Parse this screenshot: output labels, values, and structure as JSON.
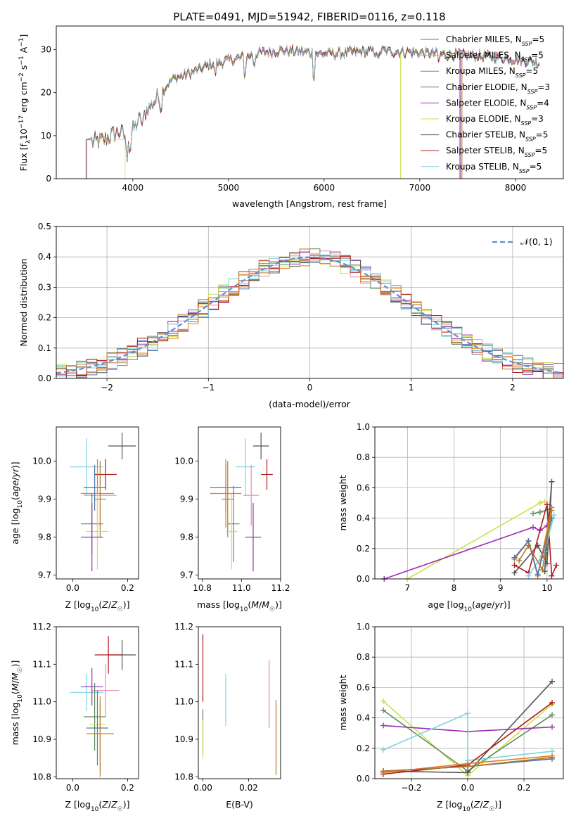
{
  "figure": {
    "title": "PLATE=0491, MJD=51942, FIBERID=0116, z=0.118"
  },
  "colors": {
    "Chabrier MILES": "#4a78b0",
    "Salpeter MILES": "#e48ab7",
    "Kroupa MILES": "#b07a2e",
    "Chabrier ELODIE": "#5f8a5f",
    "Salpeter ELODIE": "#9a2fb0",
    "Kroupa ELODIE": "#c9e24f",
    "Chabrier STELIB": "#555555",
    "Salpeter STELIB": "#b01818",
    "Kroupa STELIB": "#7fd3e0",
    "orange": "#e87a20",
    "gauss": "#5b8fd6"
  },
  "chart_data": [
    {
      "id": "spectrum",
      "type": "line",
      "xlabel": "wavelength [Angstrom, rest frame]",
      "ylabel": "Flux [f_λ10^{-17} erg cm^{-2} s^{-1} A^{-1}]",
      "xlim": [
        3200,
        8500
      ],
      "ylim": [
        0,
        35.5
      ],
      "xticks": [
        4000,
        5000,
        6000,
        7000,
        8000
      ],
      "yticks": [
        0,
        10,
        20,
        30
      ],
      "legend_position": "top-right",
      "legend": [
        {
          "name": "Chabrier MILES",
          "sub": "SSP",
          "n": "5"
        },
        {
          "name": "Salpeter MILES",
          "sub": "SSP",
          "n": "5"
        },
        {
          "name": "Kroupa MILES",
          "sub": "SSP",
          "n": "5"
        },
        {
          "name": "Chabrier ELODIE",
          "sub": "SSP",
          "n": "3"
        },
        {
          "name": "Salpeter ELODIE",
          "sub": "SSP",
          "n": "4"
        },
        {
          "name": "Kroupa ELODIE",
          "sub": "SSP",
          "n": "3"
        },
        {
          "name": "Chabrier STELIB",
          "sub": "SSP",
          "n": "5"
        },
        {
          "name": "Salpeter STELIB",
          "sub": "SSP",
          "n": "5"
        },
        {
          "name": "Kroupa STELIB",
          "sub": "SSP",
          "n": "5"
        }
      ],
      "continuum_x": [
        3570,
        3700,
        3850,
        3950,
        4050,
        4150,
        4300,
        4400,
        4600,
        4800,
        5000,
        5200,
        5400,
        5600,
        5800,
        6000,
        6200,
        6400,
        6600,
        6800,
        7000,
        7200,
        7400,
        7600,
        7800,
        8000,
        8250
      ],
      "continuum_y": [
        8.5,
        9.0,
        11,
        9.5,
        13,
        16,
        20,
        23,
        24.5,
        26.5,
        27.5,
        28.5,
        29.5,
        29.8,
        29.5,
        29.0,
        29.2,
        29.5,
        29.7,
        29.5,
        29.3,
        29.0,
        28.8,
        28.6,
        28.2,
        27.8,
        27.0
      ]
    },
    {
      "id": "residuals",
      "type": "histogram",
      "xlabel": "(data-model)/error",
      "ylabel": "Normed distribution",
      "xlim": [
        -2.5,
        2.5
      ],
      "ylim": [
        0,
        0.5
      ],
      "xticks": [
        -2,
        -1,
        0,
        1,
        2
      ],
      "xtick_labels": [
        "−2",
        "−1",
        "0",
        "1",
        "2"
      ],
      "yticks": [
        0,
        0.1,
        0.2,
        0.3,
        0.4,
        0.5
      ],
      "ytick_labels": [
        "0.0",
        "0.1",
        "0.2",
        "0.3",
        "0.4",
        "0.5"
      ],
      "grid": true,
      "legend_position": "top-right",
      "legend": [
        "𝒩(0, 1)"
      ]
    },
    {
      "id": "age_vs_Z",
      "type": "errorbar",
      "xlabel": "Z [log10(Z/Z☉)]",
      "ylabel": "age  [log10(age/yr)]",
      "xlim": [
        -0.06,
        0.24
      ],
      "ylim": [
        9.69,
        10.09
      ],
      "xticks": [
        0.0,
        0.2
      ],
      "xtick_labels": [
        "0.0",
        "0.2"
      ],
      "yticks": [
        9.7,
        9.8,
        9.9,
        10.0
      ],
      "ytick_labels": [
        "9.7",
        "9.8",
        "9.9",
        "10.0"
      ],
      "points": [
        {
          "c": "Kroupa STELIB",
          "x": 0.05,
          "xe": 0.06,
          "y": 9.985,
          "ye": 0.075
        },
        {
          "c": "Chabrier STELIB",
          "x": 0.18,
          "xe": 0.05,
          "y": 10.04,
          "ye": 0.035
        },
        {
          "c": "Salpeter STELIB",
          "x": 0.12,
          "xe": 0.04,
          "y": 9.965,
          "ye": 0.04
        },
        {
          "c": "Salpeter MILES",
          "x": 0.1,
          "xe": 0.06,
          "y": 9.91,
          "ye": 0.09
        },
        {
          "c": "Chabrier MILES",
          "x": 0.08,
          "xe": 0.04,
          "y": 9.93,
          "ye": 0.06
        },
        {
          "c": "orange",
          "x": 0.09,
          "xe": 0.06,
          "y": 9.915,
          "ye": 0.09
        },
        {
          "c": "Kroupa MILES",
          "x": 0.1,
          "xe": 0.02,
          "y": 9.9,
          "ye": 0.1
        },
        {
          "c": "Chabrier ELODIE",
          "x": 0.07,
          "xe": 0.04,
          "y": 9.835,
          "ye": 0.08
        },
        {
          "c": "Kroupa ELODIE",
          "x": 0.09,
          "xe": 0.04,
          "y": 9.815,
          "ye": 0.1
        },
        {
          "c": "Salpeter ELODIE",
          "x": 0.07,
          "xe": 0.04,
          "y": 9.8,
          "ye": 0.09
        }
      ]
    },
    {
      "id": "age_vs_mass",
      "type": "errorbar",
      "xlabel": "mass [log10(M/M☉)]",
      "ylabel": "",
      "xlim": [
        10.78,
        11.2
      ],
      "ylim": [
        9.69,
        10.09
      ],
      "xticks": [
        10.8,
        11.0,
        11.2
      ],
      "xtick_labels": [
        "10.8",
        "11.0",
        "11.2"
      ],
      "yticks": [
        9.7,
        9.8,
        9.9,
        10.0
      ],
      "ytick_labels": [
        "9.7",
        "9.8",
        "9.9",
        "10.0"
      ],
      "points": [
        {
          "c": "Kroupa STELIB",
          "x": 11.02,
          "xe": 0.05,
          "y": 9.985,
          "ye": 0.075
        },
        {
          "c": "Chabrier STELIB",
          "x": 11.1,
          "xe": 0.04,
          "y": 10.04,
          "ye": 0.035
        },
        {
          "c": "Salpeter STELIB",
          "x": 11.13,
          "xe": 0.03,
          "y": 9.965,
          "ye": 0.04
        },
        {
          "c": "Salpeter MILES",
          "x": 11.05,
          "xe": 0.04,
          "y": 9.91,
          "ye": 0.08
        },
        {
          "c": "Chabrier MILES",
          "x": 10.92,
          "xe": 0.08,
          "y": 9.93,
          "ye": 0.06
        },
        {
          "c": "orange",
          "x": 10.92,
          "xe": 0.08,
          "y": 9.915,
          "ye": 0.09
        },
        {
          "c": "Kroupa MILES",
          "x": 10.93,
          "xe": 0.03,
          "y": 9.9,
          "ye": 0.1
        },
        {
          "c": "Chabrier ELODIE",
          "x": 10.96,
          "xe": 0.03,
          "y": 9.835,
          "ye": 0.1
        },
        {
          "c": "Kroupa ELODIE",
          "x": 10.95,
          "xe": 0.03,
          "y": 9.815,
          "ye": 0.1
        },
        {
          "c": "Salpeter ELODIE",
          "x": 11.06,
          "xe": 0.04,
          "y": 9.8,
          "ye": 0.09
        }
      ]
    },
    {
      "id": "massweight_vs_age",
      "type": "line",
      "xlabel": "age  [log10(age/yr)]",
      "ylabel": "mass weight",
      "xlim": [
        6.3,
        10.35
      ],
      "ylim": [
        0,
        1.0
      ],
      "xticks": [
        7,
        8,
        9,
        10
      ],
      "xtick_labels": [
        "7",
        "8",
        "9",
        "10"
      ],
      "yticks": [
        0,
        0.2,
        0.4,
        0.6,
        0.8,
        1.0
      ],
      "ytick_labels": [
        "0.0",
        "0.2",
        "0.4",
        "0.6",
        "0.8",
        "1.0"
      ],
      "grid": true,
      "series": [
        {
          "c": "Kroupa ELODIE",
          "x": [
            7.0,
            9.85,
            9.95
          ],
          "y": [
            0.0,
            0.5,
            0.51
          ]
        },
        {
          "c": "Salpeter ELODIE",
          "x": [
            6.5,
            9.7,
            9.85,
            10.0
          ],
          "y": [
            0.0,
            0.34,
            0.32,
            0.35
          ]
        },
        {
          "c": "Chabrier ELODIE",
          "x": [
            9.7,
            9.85,
            10.05,
            9.95
          ],
          "y": [
            0.43,
            0.44,
            0.46,
            0.05
          ]
        },
        {
          "c": "Chabrier STELIB",
          "x": [
            9.3,
            9.8,
            10.0,
            10.1,
            9.95
          ],
          "y": [
            0.04,
            0.22,
            0.1,
            0.64,
            0.05
          ]
        },
        {
          "c": "Salpeter STELIB",
          "x": [
            9.3,
            9.6,
            10.0,
            10.1,
            10.2
          ],
          "y": [
            0.09,
            0.04,
            0.49,
            0.02,
            0.09
          ]
        },
        {
          "c": "Kroupa STELIB",
          "x": [
            9.6,
            9.95,
            10.15,
            9.85
          ],
          "y": [
            0.02,
            0.18,
            0.42,
            0.12
          ]
        },
        {
          "c": "orange",
          "x": [
            9.3,
            9.6,
            9.8,
            10.1,
            9.9
          ],
          "y": [
            0.13,
            0.25,
            0.02,
            0.47,
            0.15
          ]
        },
        {
          "c": "Chabrier MILES",
          "x": [
            9.3,
            9.6,
            9.8,
            10.1
          ],
          "y": [
            0.14,
            0.25,
            0.03,
            0.4
          ]
        },
        {
          "c": "Kroupa MILES",
          "x": [
            9.4,
            9.6,
            9.9,
            10.1
          ],
          "y": [
            0.12,
            0.22,
            0.06,
            0.45
          ]
        }
      ]
    },
    {
      "id": "mass_vs_Z",
      "type": "errorbar",
      "xlabel": "Z [log10(Z/Z☉)]",
      "ylabel": "mass [log10(M/M☉)]",
      "xlim": [
        -0.06,
        0.24
      ],
      "ylim": [
        10.795,
        11.2
      ],
      "xticks": [
        0.0,
        0.2
      ],
      "xtick_labels": [
        "0.0",
        "0.2"
      ],
      "yticks": [
        10.8,
        10.9,
        11.0,
        11.1,
        11.2
      ],
      "ytick_labels": [
        "10.8",
        "10.9",
        "11.0",
        "11.1",
        "11.2"
      ],
      "points": [
        {
          "c": "Kroupa STELIB",
          "x": 0.05,
          "xe": 0.06,
          "y": 11.025,
          "ye": 0.05
        },
        {
          "c": "Chabrier STELIB",
          "x": 0.18,
          "xe": 0.05,
          "y": 11.125,
          "ye": 0.04
        },
        {
          "c": "Salpeter STELIB",
          "x": 0.13,
          "xe": 0.05,
          "y": 11.125,
          "ye": 0.05
        },
        {
          "c": "Salpeter MILES",
          "x": 0.12,
          "xe": 0.05,
          "y": 11.03,
          "ye": 0.07
        },
        {
          "c": "Salpeter ELODIE",
          "x": 0.07,
          "xe": 0.04,
          "y": 11.04,
          "ye": 0.05
        },
        {
          "c": "Chabrier ELODIE",
          "x": 0.08,
          "xe": 0.04,
          "y": 10.96,
          "ye": 0.09
        },
        {
          "c": "Kroupa ELODIE",
          "x": 0.09,
          "xe": 0.03,
          "y": 10.94,
          "ye": 0.08
        },
        {
          "c": "Chabrier MILES",
          "x": 0.09,
          "xe": 0.04,
          "y": 10.93,
          "ye": 0.1
        },
        {
          "c": "orange",
          "x": 0.1,
          "xe": 0.05,
          "y": 10.915,
          "ye": 0.1
        },
        {
          "c": "Kroupa MILES",
          "x": 0.1,
          "xe": 0.0,
          "y": 10.9,
          "ye": 0.1
        }
      ]
    },
    {
      "id": "mass_vs_ebv",
      "type": "errorbar",
      "xlabel": "E(B-V)",
      "ylabel": "",
      "xlim": [
        -0.002,
        0.034
      ],
      "ylim": [
        10.795,
        11.2
      ],
      "xticks": [
        0.0,
        0.02
      ],
      "xtick_labels": [
        "0.00",
        "0.02"
      ],
      "yticks": [
        10.8,
        10.9,
        11.0,
        11.1,
        11.2
      ],
      "ytick_labels": [
        "10.8",
        "10.9",
        "11.0",
        "11.1",
        "11.2"
      ],
      "points": [
        {
          "c": "Salpeter STELIB",
          "x": 0.0,
          "xe": 0.0,
          "y": 11.09,
          "ye": 0.09
        },
        {
          "c": "Chabrier ELODIE",
          "x": 0.0,
          "xe": 0.0,
          "y": 10.92,
          "ye": 0.06
        },
        {
          "c": "Kroupa ELODIE",
          "x": 0.0,
          "xe": 0.0,
          "y": 10.9,
          "ye": 0.05
        },
        {
          "c": "Kroupa STELIB",
          "x": 0.01,
          "xe": 0.0,
          "y": 11.005,
          "ye": 0.07
        },
        {
          "c": "Salpeter MILES",
          "x": 0.029,
          "xe": 0.0,
          "y": 11.02,
          "ye": 0.09
        },
        {
          "c": "Kroupa MILES",
          "x": 0.032,
          "xe": 0.0,
          "y": 10.905,
          "ye": 0.1
        }
      ]
    },
    {
      "id": "massweight_vs_Z",
      "type": "line",
      "xlabel": "Z [log10(Z/Z☉)]",
      "ylabel": "mass weight",
      "xlim": [
        -0.33,
        0.34
      ],
      "ylim": [
        0,
        1.0
      ],
      "xticks": [
        -0.2,
        0.0,
        0.2
      ],
      "xtick_labels": [
        "−0.2",
        "0.0",
        "0.2"
      ],
      "yticks": [
        0,
        0.2,
        0.4,
        0.6,
        0.8,
        1.0
      ],
      "ytick_labels": [
        "0.0",
        "0.2",
        "0.4",
        "0.6",
        "0.8",
        "1.0"
      ],
      "grid": true,
      "series": [
        {
          "c": "Kroupa ELODIE",
          "x": [
            -0.3,
            0.0,
            0.3
          ],
          "y": [
            0.51,
            0.02,
            0.49
          ]
        },
        {
          "c": "Chabrier ELODIE",
          "x": [
            -0.3,
            0.0,
            0.3
          ],
          "y": [
            0.45,
            0.05,
            0.42
          ]
        },
        {
          "c": "Salpeter ELODIE",
          "x": [
            -0.3,
            0.0,
            0.3
          ],
          "y": [
            0.35,
            0.31,
            0.34
          ]
        },
        {
          "c": "Kroupa STELIB",
          "x": [
            -0.3,
            0.0,
            0.0,
            0.3
          ],
          "y": [
            0.19,
            0.43,
            0.12,
            0.18
          ]
        },
        {
          "c": "Chabrier STELIB",
          "x": [
            -0.3,
            0.0,
            0.3
          ],
          "y": [
            0.05,
            0.04,
            0.64
          ]
        },
        {
          "c": "Salpeter STELIB",
          "x": [
            -0.3,
            0.0,
            0.3
          ],
          "y": [
            0.03,
            0.09,
            0.5
          ]
        },
        {
          "c": "orange",
          "x": [
            -0.3,
            0.0,
            0.3
          ],
          "y": [
            0.04,
            0.1,
            0.15
          ]
        },
        {
          "c": "Chabrier MILES",
          "x": [
            -0.3,
            0.0,
            0.3
          ],
          "y": [
            0.05,
            0.08,
            0.13
          ]
        },
        {
          "c": "Kroupa MILES",
          "x": [
            -0.3,
            0.0,
            0.3
          ],
          "y": [
            0.05,
            0.08,
            0.14
          ]
        }
      ]
    }
  ]
}
